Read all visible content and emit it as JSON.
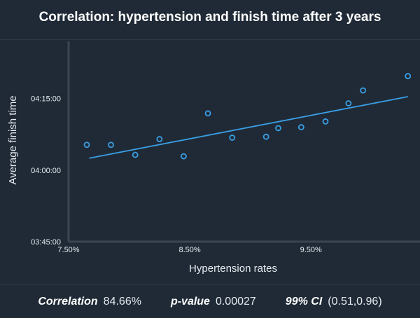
{
  "title": "Correlation: hypertension and finish time after 3 years",
  "stats": {
    "correlation_label": "Correlation",
    "correlation_value": "84.66%",
    "pvalue_label": "p-value",
    "pvalue_value": "0.00027",
    "ci_label": "99% CI",
    "ci_value": "(0.51,0.96)"
  },
  "colors": {
    "background": "#1f2a36",
    "accent": "#3a9ee4",
    "axis": "#3b4652",
    "text": "#e6ebf0"
  },
  "chart_data": {
    "type": "scatter",
    "title": "Correlation: hypertension and finish time after 3 years",
    "xlabel": "Hypertension rates",
    "ylabel": "Average finish time",
    "x_unit": "percent",
    "y_unit": "minutes",
    "xlim": [
      7.5,
      10.4
    ],
    "ylim": [
      225,
      267
    ],
    "x_ticks": [
      {
        "value": 7.5,
        "label": "7.50%"
      },
      {
        "value": 8.5,
        "label": "8.50%"
      },
      {
        "value": 9.5,
        "label": "9.50%"
      }
    ],
    "y_ticks": [
      {
        "value": 225,
        "label": "03:45:00"
      },
      {
        "value": 240,
        "label": "04:00:00"
      },
      {
        "value": 255,
        "label": "04:15:00"
      }
    ],
    "grid": false,
    "points": [
      {
        "x": 7.65,
        "y": 245.3
      },
      {
        "x": 7.85,
        "y": 245.3
      },
      {
        "x": 8.05,
        "y": 243.2
      },
      {
        "x": 8.25,
        "y": 246.5
      },
      {
        "x": 8.45,
        "y": 242.9
      },
      {
        "x": 8.65,
        "y": 251.9
      },
      {
        "x": 8.85,
        "y": 246.8
      },
      {
        "x": 9.13,
        "y": 247.0
      },
      {
        "x": 9.23,
        "y": 248.8
      },
      {
        "x": 9.42,
        "y": 249.0
      },
      {
        "x": 9.62,
        "y": 250.2
      },
      {
        "x": 9.81,
        "y": 254.0
      },
      {
        "x": 9.93,
        "y": 256.7
      },
      {
        "x": 10.3,
        "y": 259.7
      }
    ],
    "trendline": {
      "x": [
        7.67,
        10.3
      ],
      "y": [
        242.5,
        255.4
      ]
    }
  }
}
